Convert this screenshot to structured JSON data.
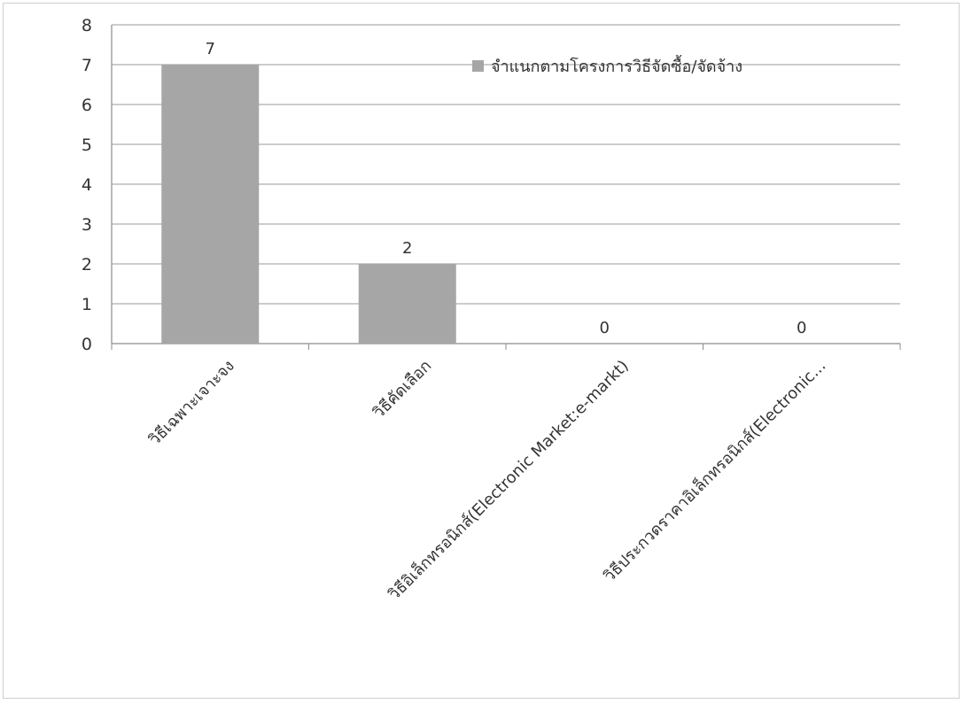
{
  "chart_data": {
    "type": "bar",
    "categories": [
      "วิธีเฉพาะเจาะจง",
      "วิธีคัดเลือก",
      "วิธีอิเล็กทรอนิกส์(Electronic Market:e-markt)",
      "วิธีประกวดราคาอิเล็กทรอนิกส์(Electronic..."
    ],
    "series": [
      {
        "name": "จำแนกตามโครงการวิธีจัดซื้อ/จัดจ้าง",
        "values": [
          7,
          2,
          0,
          0
        ]
      }
    ],
    "ylim": [
      0,
      8
    ],
    "yticks": [
      "0",
      "1",
      "2",
      "3",
      "4",
      "5",
      "6",
      "7",
      "8"
    ],
    "data_labels": [
      "7",
      "2",
      "0",
      "0"
    ],
    "grid": true,
    "legend": "top-right",
    "bar_color": "#a6a6a6",
    "title": "",
    "xlabel": "",
    "ylabel": ""
  }
}
